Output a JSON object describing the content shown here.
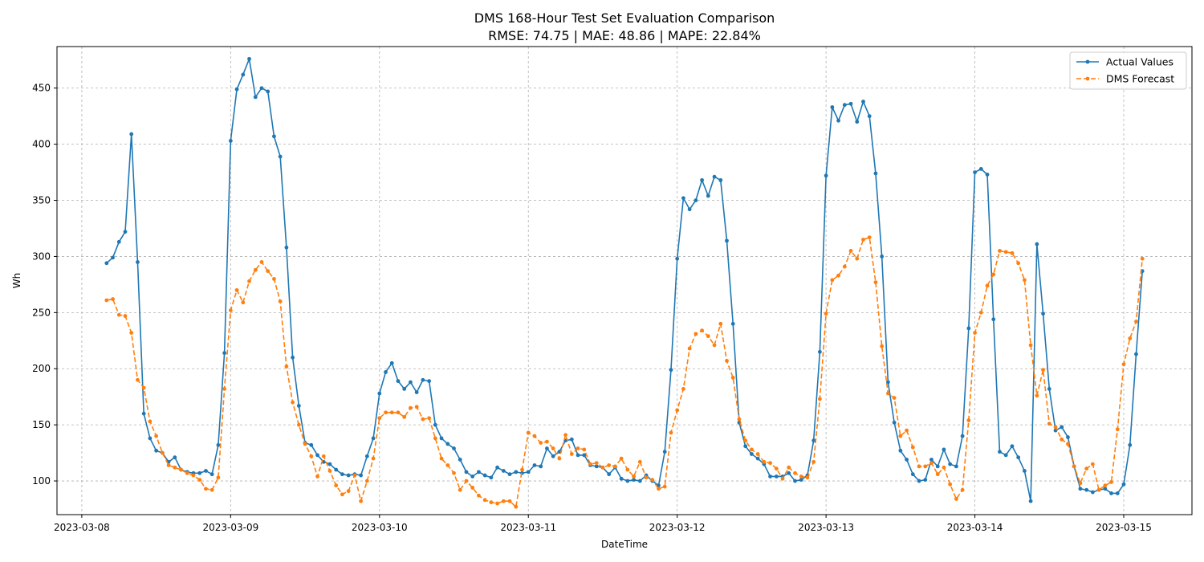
{
  "chart_data": {
    "type": "line",
    "title": "DMS 168-Hour Test Set Evaluation Comparison",
    "subtitle": "RMSE: 74.75 | MAE: 48.86 | MAPE: 22.84%",
    "xlabel": "DateTime",
    "ylabel": "Wh",
    "x_start": "2023-03-08 04:00",
    "x_step": "1 hour",
    "xlim": [
      "2023-03-07 20:00",
      "2023-03-15 11:00"
    ],
    "ylim": [
      70,
      487
    ],
    "xticks": [
      "2023-03-08",
      "2023-03-09",
      "2023-03-10",
      "2023-03-11",
      "2023-03-12",
      "2023-03-13",
      "2023-03-14",
      "2023-03-15"
    ],
    "yticks": [
      100,
      150,
      200,
      250,
      300,
      350,
      400,
      450
    ],
    "grid": true,
    "legend_position": "top-right",
    "series": [
      {
        "name": "Actual Values",
        "color": "#1f77b4",
        "style": "solid",
        "values": [
          294,
          299,
          313,
          322,
          409,
          295,
          160,
          138,
          127,
          125,
          117,
          121,
          110,
          108,
          107,
          107,
          109,
          106,
          132,
          214,
          403,
          449,
          462,
          476,
          442,
          450,
          447,
          407,
          389,
          308,
          210,
          167,
          134,
          132,
          123,
          117,
          115,
          110,
          106,
          105,
          106,
          105,
          122,
          138,
          178,
          197,
          205,
          189,
          182,
          188,
          179,
          190,
          189,
          150,
          138,
          133,
          129,
          119,
          108,
          104,
          108,
          105,
          103,
          112,
          109,
          106,
          108,
          107,
          108,
          114,
          113,
          129,
          122,
          126,
          136,
          137,
          123,
          123,
          114,
          113,
          112,
          106,
          112,
          102,
          100,
          101,
          100,
          105,
          100,
          96,
          126,
          199,
          298,
          352,
          342,
          350,
          368,
          354,
          371,
          368,
          314,
          240,
          152,
          131,
          124,
          120,
          115,
          104,
          104,
          104,
          107,
          100,
          101,
          105,
          136,
          215,
          372,
          433,
          421,
          435,
          436,
          420,
          438,
          425,
          374,
          300,
          188,
          152,
          127,
          119,
          106,
          100,
          101,
          119,
          113,
          128,
          115,
          113,
          140,
          236,
          375,
          378,
          373,
          244,
          126,
          123,
          131,
          121,
          109,
          82,
          311,
          249,
          182,
          145,
          148,
          139,
          113,
          93,
          92,
          90,
          92,
          93,
          89,
          89,
          97,
          132,
          213,
          287
        ]
      },
      {
        "name": "DMS Forecast",
        "color": "#ff7f0e",
        "style": "dashed",
        "values": [
          261,
          262,
          248,
          247,
          232,
          190,
          183,
          153,
          140,
          125,
          114,
          112,
          110,
          107,
          105,
          101,
          93,
          92,
          103,
          182,
          252,
          270,
          259,
          278,
          288,
          295,
          287,
          280,
          260,
          202,
          170,
          150,
          133,
          122,
          104,
          122,
          109,
          96,
          88,
          91,
          105,
          82,
          100,
          120,
          156,
          161,
          161,
          161,
          157,
          165,
          166,
          155,
          156,
          138,
          120,
          114,
          107,
          92,
          100,
          94,
          87,
          83,
          81,
          80,
          82,
          82,
          77,
          110,
          143,
          140,
          134,
          135,
          129,
          120,
          141,
          124,
          129,
          128,
          115,
          116,
          112,
          114,
          113,
          120,
          110,
          104,
          117,
          103,
          101,
          93,
          95,
          143,
          163,
          182,
          218,
          231,
          234,
          229,
          221,
          240,
          207,
          192,
          155,
          136,
          128,
          124,
          117,
          116,
          111,
          102,
          112,
          107,
          104,
          103,
          117,
          173,
          249,
          279,
          283,
          291,
          305,
          298,
          315,
          317,
          277,
          220,
          178,
          174,
          140,
          145,
          130,
          113,
          113,
          116,
          106,
          112,
          97,
          84,
          92,
          154,
          232,
          250,
          274,
          284,
          305,
          304,
          303,
          294,
          279,
          221,
          176,
          199,
          151,
          148,
          137,
          133,
          113,
          98,
          111,
          115,
          92,
          96,
          99,
          146,
          204,
          227,
          242,
          298
        ]
      }
    ]
  }
}
